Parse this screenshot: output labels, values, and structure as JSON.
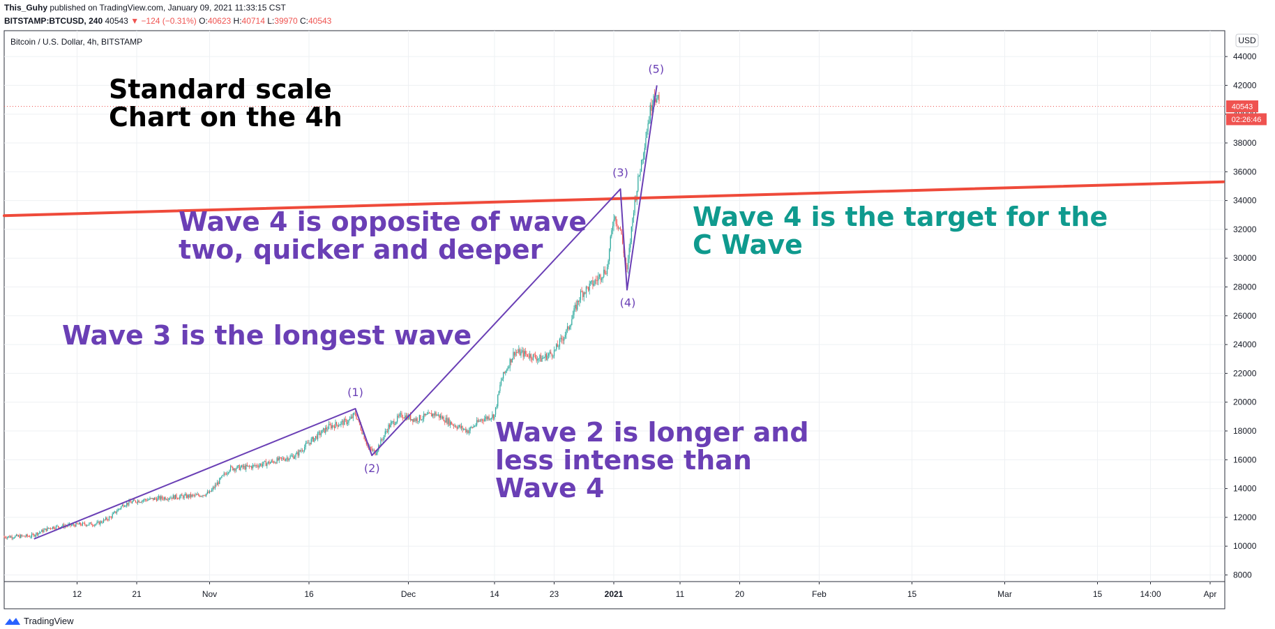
{
  "header": {
    "author": "This_Guhy",
    "published": "published on TradingView.com, January 09, 2021 11:33:15 CST",
    "symbol": "BITSTAMP:BTCUSD, 240",
    "price": "40543",
    "change": "▼ −124 (−0.31%)",
    "o_label": "O:",
    "o_value": "40623",
    "h_label": "H:",
    "h_value": "40714",
    "l_label": "L:",
    "l_value": "39970",
    "c_label": "C:",
    "c_value": "40543"
  },
  "chart_title": "Bitcoin / U.S. Dollar, 4h, BITSTAMP",
  "currency_button": "USD",
  "price_tag": "40543",
  "countdown_tag": "02:26:46",
  "footer_brand": "TradingView",
  "colors": {
    "trendline": "#ef4a3a",
    "wave": "#6a3fb5",
    "teal": "#0f9a8e",
    "up": "#26a69a",
    "down": "#ef5350",
    "tag": "#ef5350"
  },
  "chart_data": {
    "type": "candlestick",
    "title": "Bitcoin / U.S. Dollar, 4h, BITSTAMP",
    "y_axis": {
      "min": 7000,
      "max": 45000,
      "ticks": [
        8000,
        10000,
        12000,
        14000,
        16000,
        18000,
        20000,
        22000,
        24000,
        26000,
        28000,
        30000,
        32000,
        34000,
        36000,
        38000,
        40000,
        42000,
        44000
      ]
    },
    "x_ticks": [
      {
        "label": "12",
        "day": 11
      },
      {
        "label": "21",
        "day": 20
      },
      {
        "label": "Nov",
        "day": 31
      },
      {
        "label": "16",
        "day": 46
      },
      {
        "label": "Dec",
        "day": 61
      },
      {
        "label": "14",
        "day": 74
      },
      {
        "label": "23",
        "day": 83
      },
      {
        "label": "2021",
        "day": 92
      },
      {
        "label": "11",
        "day": 102
      },
      {
        "label": "20",
        "day": 111
      },
      {
        "label": "Feb",
        "day": 123
      },
      {
        "label": "15",
        "day": 137
      },
      {
        "label": "Mar",
        "day": 151
      },
      {
        "label": "15",
        "day": 165
      },
      {
        "label": "14:00",
        "day": 173
      },
      {
        "label": "Apr",
        "day": 182
      }
    ],
    "x_range_days": [
      0,
      183
    ],
    "price_path": [
      [
        0,
        10650
      ],
      [
        4,
        10700
      ],
      [
        7,
        11300
      ],
      [
        11,
        11500
      ],
      [
        14,
        11550
      ],
      [
        16,
        12000
      ],
      [
        18,
        12900
      ],
      [
        20,
        13150
      ],
      [
        25,
        13400
      ],
      [
        29,
        13500
      ],
      [
        31,
        13700
      ],
      [
        34,
        15400
      ],
      [
        37,
        15500
      ],
      [
        40,
        15800
      ],
      [
        44,
        16300
      ],
      [
        46,
        17200
      ],
      [
        49,
        18300
      ],
      [
        52,
        18700
      ],
      [
        53,
        19200
      ],
      [
        55,
        16800
      ],
      [
        56,
        16500
      ],
      [
        58,
        18300
      ],
      [
        60,
        19100
      ],
      [
        62,
        18800
      ],
      [
        65,
        19200
      ],
      [
        68,
        18400
      ],
      [
        70,
        18000
      ],
      [
        72,
        18800
      ],
      [
        74,
        19100
      ],
      [
        75,
        21500
      ],
      [
        77,
        23500
      ],
      [
        79,
        23300
      ],
      [
        81,
        23000
      ],
      [
        83,
        23500
      ],
      [
        85,
        25000
      ],
      [
        87,
        27500
      ],
      [
        89,
        28300
      ],
      [
        91,
        29300
      ],
      [
        92,
        33000
      ],
      [
        93,
        32000
      ],
      [
        94,
        29000
      ],
      [
        95,
        33500
      ],
      [
        97,
        39000
      ],
      [
        98,
        41500
      ],
      [
        99,
        40543
      ]
    ],
    "wave_points": [
      {
        "label": "(1)",
        "day": 53,
        "price": 19550
      },
      {
        "label": "(2)",
        "day": 55.5,
        "price": 16300
      },
      {
        "label": "(3)",
        "day": 93,
        "price": 34800
      },
      {
        "label": "(4)",
        "day": 94,
        "price": 27800
      },
      {
        "label": "(5)",
        "day": 98.5,
        "price": 42000
      }
    ],
    "wave_start": {
      "day": 4.5,
      "price": 10500
    },
    "trendline": [
      [
        0,
        32950
      ],
      [
        184,
        35300
      ]
    ],
    "current_price": 40543,
    "annotations": [
      {
        "id": "standard-scale",
        "text": [
          "Standard scale",
          "Chart on the 4h"
        ],
        "color": "black"
      },
      {
        "id": "wave4-opposite",
        "text": [
          "Wave 4 is opposite of wave",
          "two, quicker and deeper"
        ],
        "color": "wave"
      },
      {
        "id": "wave3-longest",
        "text": [
          "Wave 3 is the longest wave"
        ],
        "color": "wave"
      },
      {
        "id": "wave2-longer",
        "text": [
          "Wave 2 is longer and",
          "less intense than",
          "Wave 4"
        ],
        "color": "wave"
      },
      {
        "id": "wave4-target",
        "text": [
          "Wave 4 is the target for the",
          "C Wave"
        ],
        "color": "teal"
      }
    ]
  }
}
